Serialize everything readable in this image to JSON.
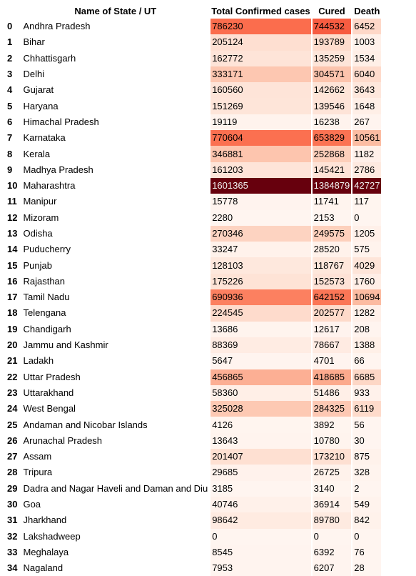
{
  "table": {
    "headers": {
      "index": "",
      "name": "Name of State / UT",
      "confirmed": "Total Confirmed cases",
      "cured": "Cured",
      "death": "Death"
    },
    "rows": [
      {
        "index": "0",
        "name": "Andhra Pradesh",
        "confirmed": "786230",
        "cured": "744532",
        "death": "6452"
      },
      {
        "index": "1",
        "name": "Bihar",
        "confirmed": "205124",
        "cured": "193789",
        "death": "1003"
      },
      {
        "index": "2",
        "name": "Chhattisgarh",
        "confirmed": "162772",
        "cured": "135259",
        "death": "1534"
      },
      {
        "index": "3",
        "name": "Delhi",
        "confirmed": "333171",
        "cured": "304571",
        "death": "6040"
      },
      {
        "index": "4",
        "name": "Gujarat",
        "confirmed": "160560",
        "cured": "142662",
        "death": "3643"
      },
      {
        "index": "5",
        "name": "Haryana",
        "confirmed": "151269",
        "cured": "139546",
        "death": "1648"
      },
      {
        "index": "6",
        "name": "Himachal Pradesh",
        "confirmed": "19119",
        "cured": "16238",
        "death": "267"
      },
      {
        "index": "7",
        "name": "Karnataka",
        "confirmed": "770604",
        "cured": "653829",
        "death": "10561"
      },
      {
        "index": "8",
        "name": "Kerala",
        "confirmed": "346881",
        "cured": "252868",
        "death": "1182"
      },
      {
        "index": "9",
        "name": "Madhya Pradesh",
        "confirmed": "161203",
        "cured": "145421",
        "death": "2786"
      },
      {
        "index": "10",
        "name": "Maharashtra",
        "confirmed": "1601365",
        "cured": "1384879",
        "death": "42727"
      },
      {
        "index": "11",
        "name": "Manipur",
        "confirmed": "15778",
        "cured": "11741",
        "death": "117"
      },
      {
        "index": "12",
        "name": "Mizoram",
        "confirmed": "2280",
        "cured": "2153",
        "death": "0"
      },
      {
        "index": "13",
        "name": "Odisha",
        "confirmed": "270346",
        "cured": "249575",
        "death": "1205"
      },
      {
        "index": "14",
        "name": "Puducherry",
        "confirmed": "33247",
        "cured": "28520",
        "death": "575"
      },
      {
        "index": "15",
        "name": "Punjab",
        "confirmed": "128103",
        "cured": "118767",
        "death": "4029"
      },
      {
        "index": "16",
        "name": "Rajasthan",
        "confirmed": "175226",
        "cured": "152573",
        "death": "1760"
      },
      {
        "index": "17",
        "name": "Tamil Nadu",
        "confirmed": "690936",
        "cured": "642152",
        "death": "10694"
      },
      {
        "index": "18",
        "name": "Telengana",
        "confirmed": "224545",
        "cured": "202577",
        "death": "1282"
      },
      {
        "index": "19",
        "name": "Chandigarh",
        "confirmed": "13686",
        "cured": "12617",
        "death": "208"
      },
      {
        "index": "20",
        "name": "Jammu and Kashmir",
        "confirmed": "88369",
        "cured": "78667",
        "death": "1388"
      },
      {
        "index": "21",
        "name": "Ladakh",
        "confirmed": "5647",
        "cured": "4701",
        "death": "66"
      },
      {
        "index": "22",
        "name": "Uttar Pradesh",
        "confirmed": "456865",
        "cured": "418685",
        "death": "6685"
      },
      {
        "index": "23",
        "name": "Uttarakhand",
        "confirmed": "58360",
        "cured": "51486",
        "death": "933"
      },
      {
        "index": "24",
        "name": "West Bengal",
        "confirmed": "325028",
        "cured": "284325",
        "death": "6119"
      },
      {
        "index": "25",
        "name": "Andaman and Nicobar Islands",
        "confirmed": "4126",
        "cured": "3892",
        "death": "56"
      },
      {
        "index": "26",
        "name": "Arunachal Pradesh",
        "confirmed": "13643",
        "cured": "10780",
        "death": "30"
      },
      {
        "index": "27",
        "name": "Assam",
        "confirmed": "201407",
        "cured": "173210",
        "death": "875"
      },
      {
        "index": "28",
        "name": "Tripura",
        "confirmed": "29685",
        "cured": "26725",
        "death": "328"
      },
      {
        "index": "29",
        "name": "Dadra and Nagar Haveli and Daman and Diu",
        "confirmed": "3185",
        "cured": "3140",
        "death": "2"
      },
      {
        "index": "30",
        "name": "Goa",
        "confirmed": "40746",
        "cured": "36914",
        "death": "549"
      },
      {
        "index": "31",
        "name": "Jharkhand",
        "confirmed": "98642",
        "cured": "89780",
        "death": "842"
      },
      {
        "index": "32",
        "name": "Lakshadweep",
        "confirmed": "0",
        "cured": "0",
        "death": "0"
      },
      {
        "index": "33",
        "name": "Meghalaya",
        "confirmed": "8545",
        "cured": "6392",
        "death": "76"
      },
      {
        "index": "34",
        "name": "Nagaland",
        "confirmed": "7953",
        "cured": "6207",
        "death": "28"
      }
    ]
  },
  "colors": {
    "low": "#fff5f0",
    "mid": "#fc9272",
    "high": "#67000d"
  }
}
